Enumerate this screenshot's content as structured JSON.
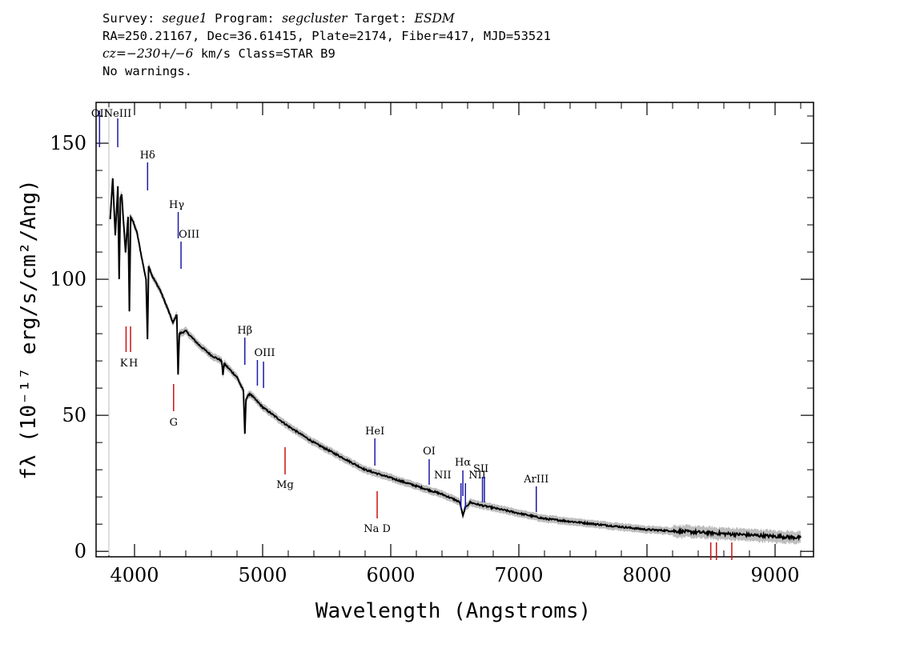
{
  "header": {
    "survey_label": "Survey:",
    "survey": "segue1",
    "program_label": "Program:",
    "program": "segcluster",
    "target_label": "Target:",
    "target": "ESDM",
    "line2": "RA=250.21167, Dec=36.61415, Plate=2174, Fiber=417, MJD=53521",
    "cz_label": "cz=",
    "cz_value": "−230+/−6",
    "cz_rest": " km/s Class=STAR B9",
    "line4": "No warnings."
  },
  "chart_data": {
    "type": "line",
    "xlabel": "Wavelength (Angstroms)",
    "ylabel": "fλ (10⁻¹⁷ erg/s/cm²/Ang)",
    "xlim": [
      3700,
      9300
    ],
    "ylim": [
      -2,
      165
    ],
    "x_ticks": [
      4000,
      5000,
      6000,
      7000,
      8000,
      9000
    ],
    "y_ticks": [
      0,
      50,
      100,
      150
    ],
    "grid": false,
    "series": [
      {
        "color": "#000000",
        "x": [
          3810,
          3830,
          3850,
          3870,
          3880,
          3890,
          3900,
          3910,
          3930,
          3950,
          3960,
          3970,
          3990,
          4020,
          4060,
          4090,
          4101,
          4110,
          4140,
          4200,
          4260,
          4300,
          4330,
          4340,
          4350,
          4400,
          4500,
          4600,
          4680,
          4690,
          4700,
          4800,
          4850,
          4861,
          4870,
          4900,
          5000,
          5200,
          5400,
          5600,
          5800,
          6000,
          6200,
          6400,
          6500,
          6540,
          6563,
          6580,
          6620,
          6700,
          6800,
          7000,
          7200,
          7500,
          7800,
          8000,
          8200,
          8400,
          8600,
          8800,
          9000,
          9200
        ],
        "y": [
          122,
          137,
          116,
          134,
          100,
          130,
          131,
          124,
          110,
          123,
          88,
          123,
          121,
          117,
          107,
          100,
          78,
          105,
          101,
          96,
          89,
          84,
          87,
          65,
          80,
          81,
          76,
          72,
          70,
          65,
          69,
          64,
          59,
          43,
          56,
          58,
          53,
          46,
          40,
          35,
          30,
          27,
          24,
          21,
          19,
          18,
          13,
          16,
          18,
          17,
          16,
          14,
          12,
          10.5,
          9,
          8,
          7.5,
          7,
          6.5,
          6,
          5.5,
          5
        ]
      }
    ],
    "error_band_color": "#bdbdbd",
    "lines_blue": [
      {
        "label": "OII",
        "x": 3727
      },
      {
        "label": "NeIII",
        "x": 3869
      },
      {
        "label": "Hδ",
        "x": 4102
      },
      {
        "label": "Hγ",
        "x": 4341
      },
      {
        "label": "OIII",
        "x": 4363
      },
      {
        "label": "Hβ",
        "x": 4861
      },
      {
        "label": "OIII",
        "x": 4959
      },
      {
        "label": "",
        "x": 5007
      },
      {
        "label": "HeI",
        "x": 5876
      },
      {
        "label": "OI",
        "x": 6300
      },
      {
        "label": "NII",
        "x": 6548
      },
      {
        "label": "Hα",
        "x": 6563
      },
      {
        "label": "NII",
        "x": 6583
      },
      {
        "label": "SII",
        "x": 6716
      },
      {
        "label": "",
        "x": 6731
      },
      {
        "label": "ArIII",
        "x": 7136
      }
    ],
    "lines_red": [
      {
        "label": "K",
        "x": 3934
      },
      {
        "label": "H",
        "x": 3969
      },
      {
        "label": "G",
        "x": 4305
      },
      {
        "label": "Mg",
        "x": 5175
      },
      {
        "label": "Na D",
        "x": 5894
      },
      {
        "label": "",
        "x": 8498
      },
      {
        "label": "",
        "x": 8542
      },
      {
        "label": "",
        "x": 8662
      }
    ]
  }
}
